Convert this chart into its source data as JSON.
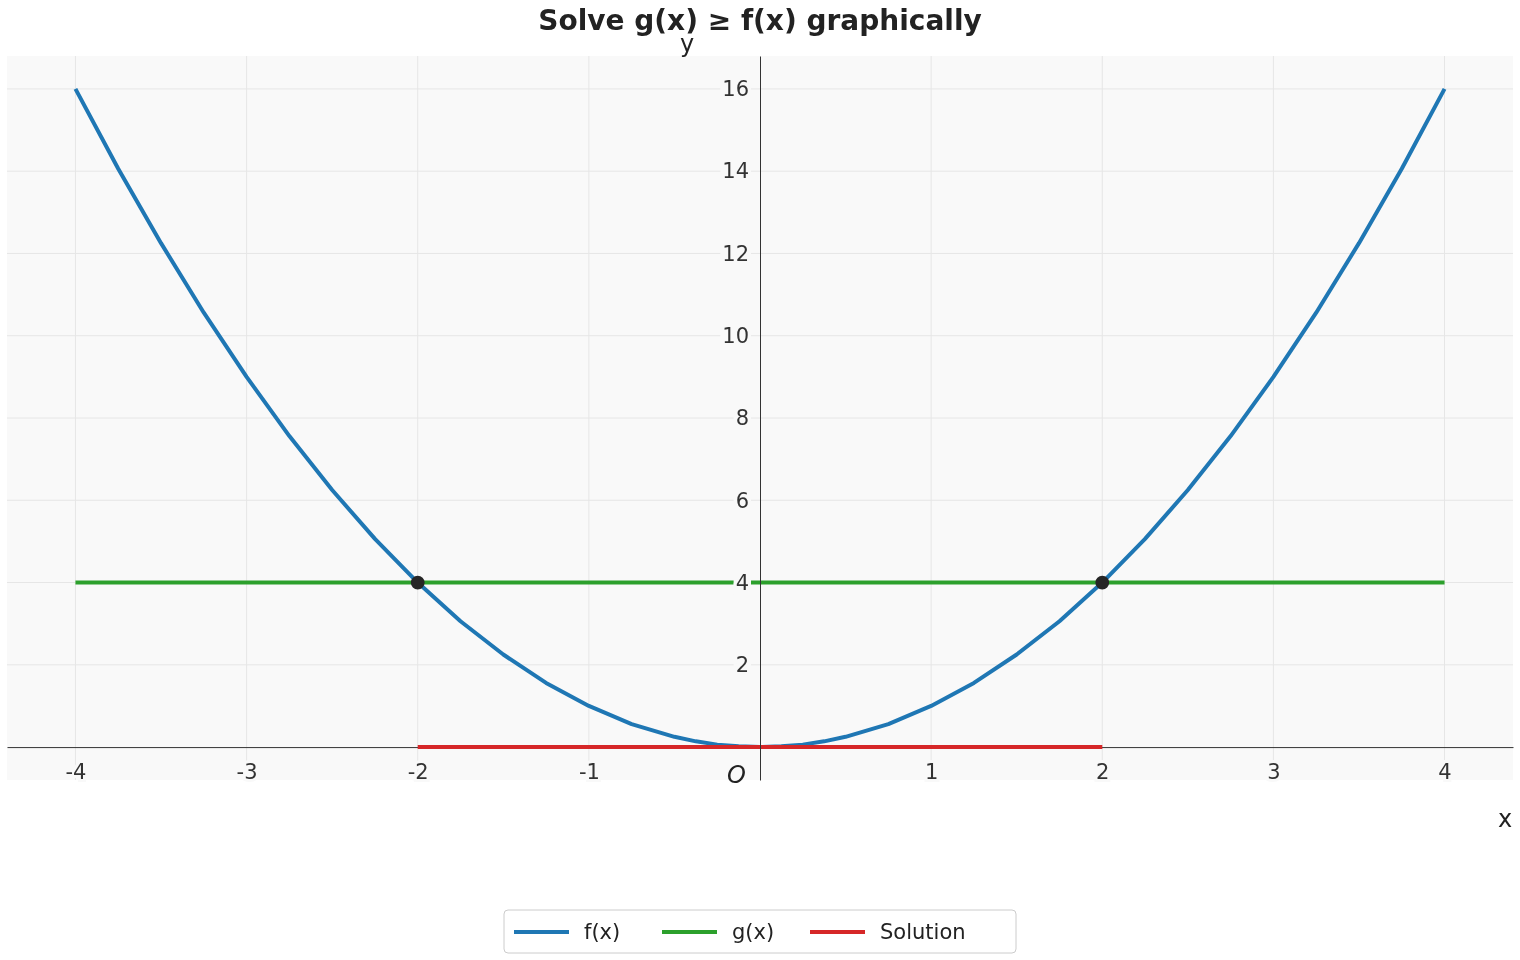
{
  "chart_data": {
    "type": "line",
    "title": "Solve g(x) ≥ f(x) graphically",
    "xlabel": "x",
    "ylabel": "y",
    "xlim": [
      -4.4,
      4.4
    ],
    "ylim": [
      -0.8,
      16.8
    ],
    "xticks": [
      -4,
      -3,
      -2,
      -1,
      1,
      2,
      3,
      4
    ],
    "yticks": [
      2,
      4,
      6,
      8,
      10,
      12,
      14,
      16
    ],
    "grid": true,
    "legend": "bottom",
    "line_style": "solid",
    "annotations": [
      {
        "text": "O",
        "x": 0,
        "y": 0
      }
    ],
    "series": [
      {
        "name": "f(x)",
        "color": "#1f77b4",
        "x": [
          -4,
          -3.75,
          -3.5,
          -3.25,
          -3,
          -2.75,
          -2.5,
          -2.25,
          -2,
          -1.75,
          -1.5,
          -1.25,
          -1,
          -0.75,
          -0.5,
          -0.375,
          -0.25,
          -0.125,
          0,
          0.125,
          0.25,
          0.375,
          0.5,
          0.75,
          1,
          1.25,
          1.5,
          1.75,
          2,
          2.25,
          2.5,
          2.75,
          3,
          3.25,
          3.5,
          3.75,
          4
        ],
        "values": [
          16,
          14.06,
          12.25,
          10.56,
          9,
          7.56,
          6.25,
          5.06,
          4,
          3.06,
          2.25,
          1.56,
          1,
          0.56,
          0.25,
          0.14,
          0.06,
          0.02,
          0,
          0.02,
          0.06,
          0.14,
          0.25,
          0.56,
          1,
          1.56,
          2.25,
          3.06,
          4,
          5.06,
          6.25,
          7.56,
          9,
          10.56,
          12.25,
          14.06,
          16
        ]
      },
      {
        "name": "g(x)",
        "color": "#2ca02c",
        "x": [
          -4,
          4
        ],
        "values": [
          4,
          4
        ]
      },
      {
        "name": "Solution",
        "color": "#d62728",
        "x": [
          -2,
          2
        ],
        "values": [
          0,
          0
        ]
      },
      {
        "type": "scatter",
        "color": "#262626",
        "marker": "circle",
        "x": [
          -2,
          2
        ],
        "values": [
          4,
          4
        ]
      }
    ]
  }
}
